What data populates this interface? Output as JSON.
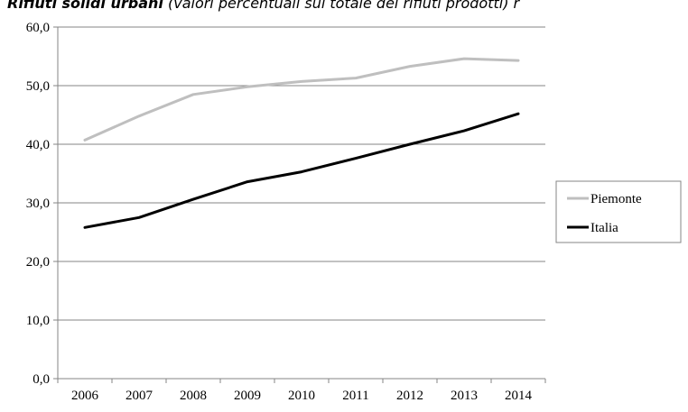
{
  "header": {
    "title_bold": "Rifiuti solidi urbani",
    "title_rest": " (valori percentuali sul totale dei rifiuti prodotti) r"
  },
  "chart_data": {
    "type": "line",
    "title": "Rifiuti solidi urbani (valori percentuali sul totale dei rifiuti prodotti)",
    "xlabel": "",
    "ylabel": "",
    "categories": [
      "2006",
      "2007",
      "2008",
      "2009",
      "2010",
      "2011",
      "2012",
      "2013",
      "2014"
    ],
    "ylim": [
      0,
      60
    ],
    "yticks": [
      "0,0",
      "10,0",
      "20,0",
      "30,0",
      "40,0",
      "50,0",
      "60,0"
    ],
    "grid": true,
    "legend_position": "right",
    "series": [
      {
        "name": "Piemonte",
        "color": "#bfbfbf",
        "values": [
          40.7,
          44.8,
          48.5,
          49.8,
          50.7,
          51.3,
          53.3,
          54.6,
          54.3
        ]
      },
      {
        "name": "Italia",
        "color": "#000000",
        "values": [
          25.8,
          27.5,
          30.6,
          33.6,
          35.3,
          37.6,
          40.0,
          42.3,
          45.2
        ]
      }
    ]
  }
}
